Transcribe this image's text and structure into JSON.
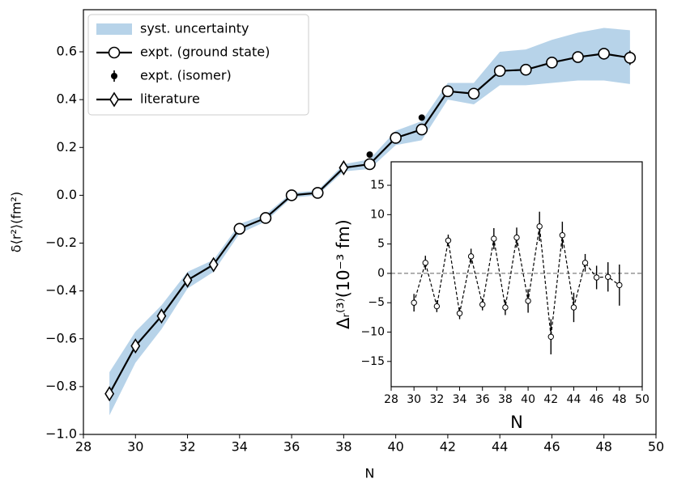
{
  "chart_data": [
    {
      "type": "line",
      "xlabel": "N",
      "ylabel": "δ⟨r²⟩(fm²)",
      "x": [
        29,
        30,
        31,
        32,
        33,
        34,
        35,
        36,
        37,
        38,
        39,
        40,
        41,
        42,
        43,
        44,
        45,
        46,
        47,
        48,
        49
      ],
      "xlim": [
        28,
        50
      ],
      "xticks": [
        28,
        30,
        32,
        34,
        36,
        38,
        40,
        42,
        44,
        46,
        48,
        50
      ],
      "ylim": [
        -1.0,
        0.776
      ],
      "yticks": [
        {
          "value": -1.0,
          "label": "−1.0"
        },
        {
          "value": -0.8,
          "label": "−0.8"
        },
        {
          "value": -0.6,
          "label": "−0.6"
        },
        {
          "value": -0.4,
          "label": "−0.4"
        },
        {
          "value": -0.2,
          "label": "−0.2"
        },
        {
          "value": 0,
          "label": "0.0"
        },
        0.2,
        0.4,
        0.6
      ],
      "band": {
        "name": "syst. uncertainty",
        "color": "#b7d3e9",
        "lower": [
          -0.92,
          -0.7,
          -0.56,
          -0.39,
          -0.32,
          -0.16,
          -0.11,
          -0.01,
          0.0,
          0.1,
          0.11,
          0.21,
          0.23,
          0.4,
          0.38,
          0.46,
          0.46,
          0.47,
          0.48,
          0.48,
          0.465
        ],
        "upper": [
          -0.74,
          -0.57,
          -0.46,
          -0.32,
          -0.27,
          -0.12,
          -0.08,
          0.01,
          0.02,
          0.13,
          0.15,
          0.27,
          0.31,
          0.47,
          0.47,
          0.6,
          0.61,
          0.65,
          0.68,
          0.7,
          0.69
        ]
      },
      "series": [
        {
          "name": "expt. (ground state)",
          "color": "#000000",
          "marker": "circle",
          "values": [
            null,
            null,
            null,
            null,
            null,
            -0.14,
            -0.095,
            0.0,
            0.01,
            null,
            0.13,
            0.24,
            0.275,
            0.435,
            0.425,
            0.52,
            0.525,
            0.555,
            0.578,
            0.592,
            0.575
          ],
          "errors": [
            null,
            null,
            null,
            null,
            null,
            0.01,
            0.01,
            0.01,
            0.01,
            null,
            0.01,
            0.01,
            0.01,
            0.01,
            0.01,
            0.01,
            0.01,
            0.01,
            0.01,
            0.01,
            0.03
          ]
        },
        {
          "name": "expt. (isomer)",
          "color": "#000000",
          "marker": "dot",
          "values": [
            null,
            null,
            null,
            null,
            null,
            null,
            null,
            null,
            null,
            null,
            0.17,
            null,
            0.325,
            null,
            null,
            null,
            null,
            null,
            null,
            null,
            null
          ]
        },
        {
          "name": "literature",
          "color": "#000000",
          "marker": "diamond",
          "values": [
            -0.83,
            -0.63,
            -0.505,
            -0.355,
            -0.29,
            null,
            null,
            null,
            null,
            0.115,
            null,
            null,
            null,
            null,
            null,
            null,
            null,
            null,
            null,
            null,
            null
          ]
        }
      ],
      "legend": "upper left"
    },
    {
      "type": "line",
      "xlabel": "N",
      "ylabel": "Δᵣ⁽³⁾(10⁻³ fm)",
      "x": [
        30,
        31,
        32,
        33,
        34,
        35,
        36,
        37,
        38,
        39,
        40,
        41,
        42,
        43,
        44,
        45,
        46,
        47,
        48
      ],
      "values": [
        -5.0,
        1.8,
        -5.6,
        5.6,
        -6.8,
        2.9,
        -5.3,
        5.9,
        -5.8,
        6.1,
        -4.7,
        8.0,
        -10.8,
        6.5,
        -5.8,
        1.8,
        -0.7,
        -0.6,
        -2.0
      ],
      "errors": [
        1.5,
        1.2,
        1.0,
        1.0,
        1.0,
        1.3,
        1.0,
        1.8,
        1.3,
        1.7,
        2.0,
        2.5,
        3.0,
        2.3,
        2.5,
        1.5,
        2.0,
        2.5,
        3.5
      ],
      "color": "#000000",
      "linestyle": "dashed",
      "hline": 0,
      "xlim": [
        28,
        50
      ],
      "xticks": [
        28,
        30,
        32,
        34,
        36,
        38,
        40,
        42,
        44,
        46,
        48,
        50
      ],
      "ylim": [
        -19.3,
        19.0
      ],
      "yticks": [
        {
          "value": -15,
          "label": "−15"
        },
        {
          "value": -10,
          "label": "−10"
        },
        {
          "value": -5,
          "label": "−5"
        },
        0,
        5,
        10,
        15
      ]
    }
  ]
}
